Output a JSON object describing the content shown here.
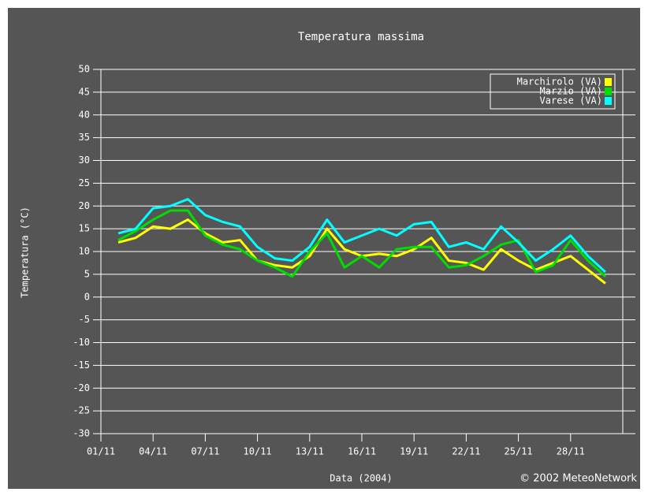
{
  "chart_data": {
    "type": "line",
    "title": "Temperatura massima",
    "xlabel": "Data (2004)",
    "ylabel": "Temperatura (°C)",
    "credit": "© 2002 MeteoNetwork",
    "x": [
      2,
      3,
      4,
      5,
      6,
      7,
      8,
      9,
      10,
      11,
      12,
      13,
      14,
      15,
      16,
      17,
      18,
      19,
      20,
      21,
      22,
      23,
      24,
      25,
      26,
      27,
      28,
      29,
      30
    ],
    "series": [
      {
        "name": "Marchirolo (VA)",
        "color": "#ffff00",
        "values": [
          12,
          13,
          15.5,
          15,
          17,
          14,
          12,
          12.5,
          8,
          7,
          6.5,
          9,
          15,
          10.5,
          9,
          9.5,
          9,
          10.5,
          13,
          8,
          7.5,
          6,
          10.5,
          8,
          6,
          7.5,
          9,
          6,
          3
        ]
      },
      {
        "name": "Marzio (VA)",
        "color": "#00dd00",
        "values": [
          12.5,
          14.5,
          17,
          19,
          19,
          13.5,
          11.5,
          10.5,
          8,
          6.5,
          4.5,
          10,
          14,
          6.5,
          9,
          6.5,
          10.5,
          11,
          11,
          6.5,
          7,
          9,
          11.5,
          12.5,
          5.5,
          7,
          12.5,
          8,
          4.5
        ]
      },
      {
        "name": "Varese (VA)",
        "color": "#00ffff",
        "values": [
          14,
          15,
          19.5,
          20,
          21.5,
          18,
          16.5,
          15.5,
          11,
          8.5,
          8,
          11,
          17,
          12,
          13.5,
          15,
          13.5,
          16,
          16.5,
          11,
          12,
          10.5,
          15.5,
          12,
          8,
          10.5,
          13.5,
          9,
          5.5
        ]
      }
    ],
    "xlim": [
      1,
      31
    ],
    "xticks": [
      {
        "value": 1,
        "label": "01/11"
      },
      {
        "value": 4,
        "label": "04/11"
      },
      {
        "value": 7,
        "label": "07/11"
      },
      {
        "value": 10,
        "label": "10/11"
      },
      {
        "value": 13,
        "label": "13/11"
      },
      {
        "value": 16,
        "label": "16/11"
      },
      {
        "value": 19,
        "label": "19/11"
      },
      {
        "value": 22,
        "label": "22/11"
      },
      {
        "value": 25,
        "label": "25/11"
      },
      {
        "value": 28,
        "label": "28/11"
      }
    ],
    "ylim": [
      -30,
      50
    ],
    "yticks": [
      -30,
      -25,
      -20,
      -15,
      -10,
      -5,
      0,
      5,
      10,
      15,
      20,
      25,
      30,
      35,
      40,
      45,
      50
    ],
    "grid": true,
    "legend": "top-right"
  }
}
